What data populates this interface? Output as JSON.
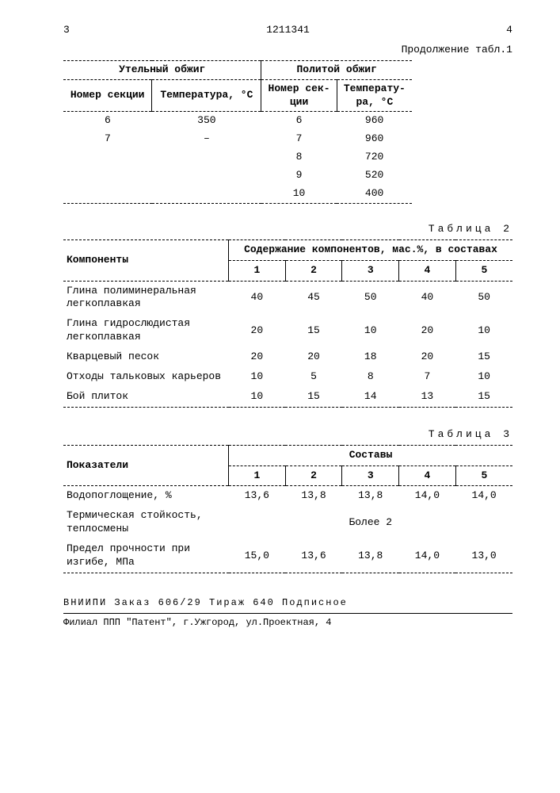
{
  "page": {
    "left_mark": "3",
    "center_mark": "1211341",
    "right_mark": "4"
  },
  "table1": {
    "continuation": "Продолжение табл.1",
    "group_left": "Утельный обжиг",
    "group_right": "Политой обжиг",
    "col1": "Номер секции",
    "col2": "Температура, °С",
    "col3": "Номер сек-\nции",
    "col4": "Температу-\nра, °С",
    "rows": [
      {
        "a": "6",
        "b": "350",
        "c": "6",
        "d": "960"
      },
      {
        "a": "7",
        "b": "–",
        "c": "7",
        "d": "960"
      },
      {
        "a": "",
        "b": "",
        "c": "8",
        "d": "720"
      },
      {
        "a": "",
        "b": "",
        "c": "9",
        "d": "520"
      },
      {
        "a": "",
        "b": "",
        "c": "10",
        "d": "400"
      }
    ]
  },
  "table2": {
    "title": "Таблица 2",
    "col_label": "Компоненты",
    "group_label": "Содержание компонентов, мас.%, в составах",
    "cols": [
      "1",
      "2",
      "3",
      "4",
      "5"
    ],
    "rows": [
      {
        "label": "Глина полиминеральная легкоплавкая",
        "v": [
          "40",
          "45",
          "50",
          "40",
          "50"
        ]
      },
      {
        "label": "Глина гидрослюдистая легкоплавкая",
        "v": [
          "20",
          "15",
          "10",
          "20",
          "10"
        ]
      },
      {
        "label": "Кварцевый песок",
        "v": [
          "20",
          "20",
          "18",
          "20",
          "15"
        ]
      },
      {
        "label": "Отходы тальковых карьеров",
        "v": [
          "10",
          "5",
          "8",
          "7",
          "10"
        ]
      },
      {
        "label": "Бой плиток",
        "v": [
          "10",
          "15",
          "14",
          "13",
          "15"
        ]
      }
    ]
  },
  "table3": {
    "title": "Таблица 3",
    "col_label": "Показатели",
    "group_label": "Составы",
    "cols": [
      "1",
      "2",
      "3",
      "4",
      "5"
    ],
    "rows": [
      {
        "label": "Водопоглощение, %",
        "v": [
          "13,6",
          "13,8",
          "13,8",
          "14,0",
          "14,0"
        ]
      },
      {
        "label": "Термическая стойкость, теплосмены",
        "span": "Более 2"
      },
      {
        "label": "Предел прочности при изгибе, МПа",
        "v": [
          "15,0",
          "13,6",
          "13,8",
          "14,0",
          "13,0"
        ]
      }
    ]
  },
  "footer": {
    "line1": "ВНИИПИ  Заказ 606/29   Тираж 640   Подписное",
    "line2": "Филиал ППП \"Патент\", г.Ужгород, ул.Проектная, 4"
  }
}
